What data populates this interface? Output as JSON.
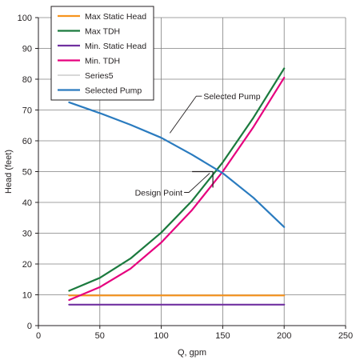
{
  "chart_data": {
    "type": "line",
    "title": "",
    "xlabel": "Q, gpm",
    "ylabel": "Head (feet)",
    "xlim": [
      0,
      250
    ],
    "ylim": [
      0,
      100
    ],
    "xticks": [
      0,
      50,
      100,
      150,
      200,
      250
    ],
    "yticks": [
      0,
      10,
      20,
      30,
      40,
      50,
      60,
      70,
      80,
      90,
      100
    ],
    "grid": true,
    "legend": "top-left",
    "series": [
      {
        "name": "Max Static Head",
        "color": "#f7941d",
        "x": [
          25,
          200
        ],
        "y": [
          9.8,
          9.8
        ]
      },
      {
        "name": "Max TDH",
        "color": "#1b7a3e",
        "x": [
          25,
          50,
          75,
          100,
          125,
          150,
          175,
          200
        ],
        "y": [
          11.3,
          15.5,
          21.8,
          30.2,
          40.5,
          53,
          67.5,
          83.5
        ]
      },
      {
        "name": "Min. Static Head",
        "color": "#7030a0",
        "x": [
          25,
          200
        ],
        "y": [
          6.8,
          6.8
        ]
      },
      {
        "name": "Min. TDH",
        "color": "#e6007e",
        "x": [
          25,
          50,
          75,
          100,
          125,
          150,
          175,
          200
        ],
        "y": [
          8.3,
          12.5,
          18.5,
          27,
          37.5,
          50,
          64.5,
          80.5
        ]
      },
      {
        "name": "Series5",
        "color": "#b0b0b0",
        "x": [],
        "y": []
      },
      {
        "name": "Selected Pump",
        "color": "#2a7bbf",
        "x": [
          25,
          50,
          75,
          100,
          125,
          150,
          175,
          200
        ],
        "y": [
          72.5,
          69,
          65.2,
          61,
          55.5,
          49.5,
          41.5,
          32
        ]
      }
    ],
    "annotations": [
      {
        "text": "Selected Pump",
        "x": 107,
        "y": 71
      },
      {
        "text": "Design Point",
        "x": 142,
        "y": 50
      }
    ]
  }
}
